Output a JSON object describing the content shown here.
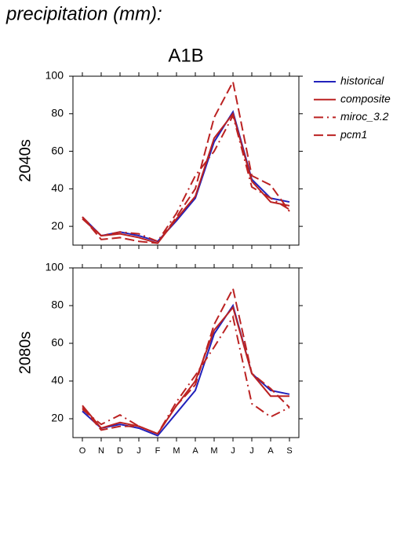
{
  "title": "precipitation (mm):",
  "subtitle": "A1B",
  "chart_data": [
    {
      "type": "line",
      "ylabel": "2040s",
      "categories": [
        null,
        null,
        null,
        null,
        null,
        null,
        null,
        null,
        null,
        null,
        null,
        null
      ],
      "ylim": [
        10,
        100
      ],
      "yticks": [
        20,
        40,
        60,
        80,
        100
      ],
      "series": [
        {
          "name": "historical",
          "color": "#2222bb",
          "dash": "solid",
          "values": [
            25,
            15,
            17,
            15,
            12,
            23,
            35,
            65,
            81,
            45,
            35,
            33
          ]
        },
        {
          "name": "composite",
          "color": "#bb2222",
          "dash": "solid",
          "values": [
            24,
            15,
            16,
            14,
            11,
            24,
            36,
            67,
            80,
            44,
            33,
            31
          ]
        },
        {
          "name": "miroc_3.2",
          "color": "#bb2222",
          "dash": "dashdot",
          "values": [
            25,
            15,
            17,
            16,
            12,
            27,
            47,
            60,
            79,
            41,
            35,
            29
          ]
        },
        {
          "name": "pcm1",
          "color": "#bb2222",
          "dash": "dashed",
          "values": [
            25,
            13,
            14,
            12,
            11,
            25,
            40,
            78,
            97,
            47,
            42,
            28
          ]
        }
      ]
    },
    {
      "type": "line",
      "ylabel": "2080s",
      "categories": [
        "O",
        "N",
        "D",
        "J",
        "F",
        "M",
        "A",
        "M",
        "J",
        "J",
        "A",
        "S"
      ],
      "ylim": [
        10,
        100
      ],
      "yticks": [
        20,
        40,
        60,
        80,
        100
      ],
      "series": [
        {
          "color": "#2222bb",
          "dash": "solid",
          "values": [
            24,
            15,
            17,
            15,
            11,
            23,
            35,
            65,
            80,
            44,
            35,
            33
          ]
        },
        {
          "color": "#bb2222",
          "dash": "solid",
          "values": [
            27,
            15,
            18,
            16,
            12,
            27,
            40,
            67,
            79,
            44,
            32,
            32
          ]
        },
        {
          "color": "#bb2222",
          "dash": "dashdot",
          "values": [
            25,
            17,
            22,
            16,
            12,
            29,
            43,
            58,
            74,
            28,
            21,
            26
          ]
        },
        {
          "color": "#bb2222",
          "dash": "dashed",
          "values": [
            26,
            14,
            16,
            16,
            12,
            27,
            38,
            70,
            89,
            44,
            36,
            26
          ]
        }
      ]
    }
  ]
}
